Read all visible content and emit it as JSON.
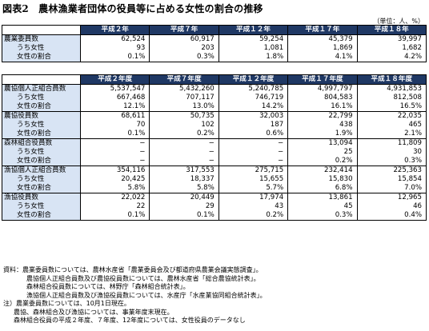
{
  "title": "図表2　農林漁業者団体の役員等に占める女性の割合の推移",
  "unit": "（単位：人、%）",
  "table1": {
    "headers": [
      "平成２年",
      "平成７年",
      "平成１２年",
      "平成１７年",
      "平成１８年"
    ],
    "rows": [
      {
        "label": "農業委員数",
        "values": [
          "62,524",
          "60,917",
          "59,254",
          "45,379",
          "39,997"
        ]
      },
      {
        "label": "うち女性",
        "values": [
          "93",
          "203",
          "1,081",
          "1,869",
          "1,682"
        ]
      },
      {
        "label": "女性の割合",
        "values": [
          "0.1%",
          "0.3%",
          "1.8%",
          "4.1%",
          "4.2%"
        ]
      }
    ]
  },
  "table2": {
    "headers": [
      "平成２年度",
      "平成７年度",
      "平成１２年度",
      "平成１７年度",
      "平成１８年度"
    ],
    "groups": [
      {
        "rows": [
          {
            "label": "農協個人正組合員数",
            "values": [
              "5,537,547",
              "5,432,260",
              "5,240,785",
              "4,997,797",
              "4,931,853"
            ]
          },
          {
            "label": "うち女性",
            "values": [
              "667,468",
              "707,117",
              "746,719",
              "804,583",
              "812,508"
            ]
          },
          {
            "label": "女性の割合",
            "values": [
              "12.1%",
              "13.0%",
              "14.2%",
              "16.1%",
              "16.5%"
            ]
          }
        ]
      },
      {
        "rows": [
          {
            "label": "農協役員数",
            "values": [
              "68,611",
              "50,735",
              "32,003",
              "22,799",
              "22,035"
            ]
          },
          {
            "label": "うち女性",
            "values": [
              "70",
              "102",
              "187",
              "438",
              "465"
            ]
          },
          {
            "label": "女性の割合",
            "values": [
              "0.1%",
              "0.2%",
              "0.6%",
              "1.9%",
              "2.1%"
            ]
          }
        ]
      },
      {
        "rows": [
          {
            "label": "森林組合役員数",
            "values": [
              "−",
              "−",
              "−",
              "13,094",
              "11,809"
            ]
          },
          {
            "label": "うち女性",
            "values": [
              "−",
              "−",
              "−",
              "25",
              "30"
            ]
          },
          {
            "label": "女性の割合",
            "values": [
              "−",
              "−",
              "−",
              "0.2%",
              "0.3%"
            ]
          }
        ]
      },
      {
        "rows": [
          {
            "label": "漁協個人正組合員数",
            "values": [
              "354,116",
              "317,553",
              "275,715",
              "232,414",
              "225,363"
            ]
          },
          {
            "label": "うち女性",
            "values": [
              "20,425",
              "18,337",
              "15,655",
              "15,830",
              "15,854"
            ]
          },
          {
            "label": "女性の割合",
            "values": [
              "5.8%",
              "5.8%",
              "5.7%",
              "6.8%",
              "7.0%"
            ]
          }
        ]
      },
      {
        "rows": [
          {
            "label": "漁協役員数",
            "values": [
              "22,022",
              "20,449",
              "17,974",
              "13,861",
              "12,965"
            ]
          },
          {
            "label": "うち女性",
            "values": [
              "22",
              "29",
              "43",
              "45",
              "46"
            ]
          },
          {
            "label": "女性の割合",
            "values": [
              "0.1%",
              "0.1%",
              "0.2%",
              "0.3%",
              "0.4%"
            ]
          }
        ]
      }
    ]
  },
  "notes": [
    "資料：農業委員数については、農林水産省「農業委員会及び都道府県農業会議実態調査」。",
    "農協個人正組合員数及び農協役員数については、農林水産省「総合農協統計表」。",
    "森林組合役員数については、林野庁「森林組合統計表」。",
    "漁協個人正組合員数及び漁協役員数については、水産庁「水産業協同組合統計表」。",
    "注）農業委員数については、10月1日現在。",
    "農協、森林組合及び漁協については、事業年度末現在。",
    "森林組合役員の平成２年度、７年度、12年度については、女性役員のデータなし"
  ]
}
